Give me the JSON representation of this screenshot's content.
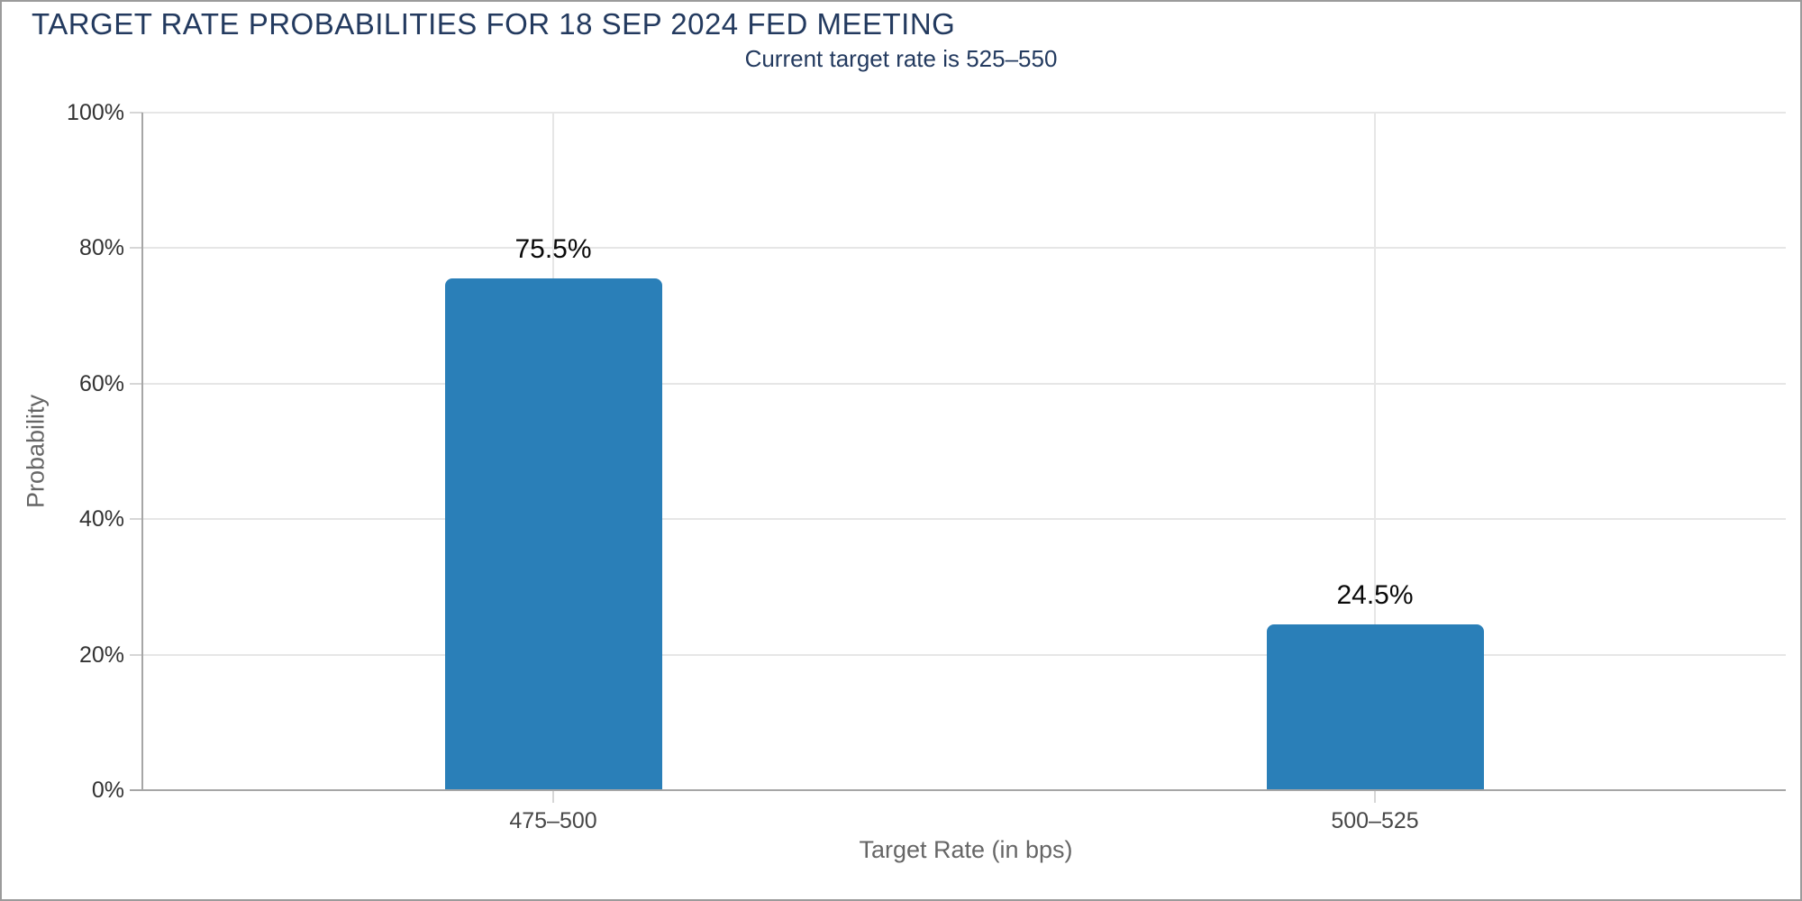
{
  "header": {
    "title": "TARGET RATE PROBABILITIES FOR 18 SEP 2024 FED MEETING",
    "subtitle": "Current target rate is 525–550"
  },
  "chart_data": {
    "type": "bar",
    "title": "TARGET RATE PROBABILITIES FOR 18 SEP 2024 FED MEETING",
    "subtitle": "Current target rate is 525–550",
    "categories": [
      "475–500",
      "500–525"
    ],
    "values": [
      75.5,
      24.5
    ],
    "value_labels": [
      "75.5%",
      "24.5%"
    ],
    "xlabel": "Target Rate (in bps)",
    "ylabel": "Probability",
    "ylim": [
      0,
      100
    ],
    "y_ticks": [
      0,
      20,
      40,
      60,
      80,
      100
    ],
    "y_tick_labels": [
      "0%",
      "20%",
      "40%",
      "60%",
      "80%",
      "100%"
    ],
    "grid": true,
    "legend": false,
    "bar_color": "#2a7fb8"
  },
  "colors": {
    "title_navy": "#233a5f",
    "bar_blue": "#2a7fb8",
    "gridline": "#e6e6e6",
    "axis_line": "#a6a6a6",
    "tick_mark": "#d6d6d6",
    "y_tick_label": "#333333",
    "category_label": "#474747",
    "axis_title": "#666666",
    "value_label": "#0a0a0a",
    "page_border": "#9b9b9b"
  }
}
